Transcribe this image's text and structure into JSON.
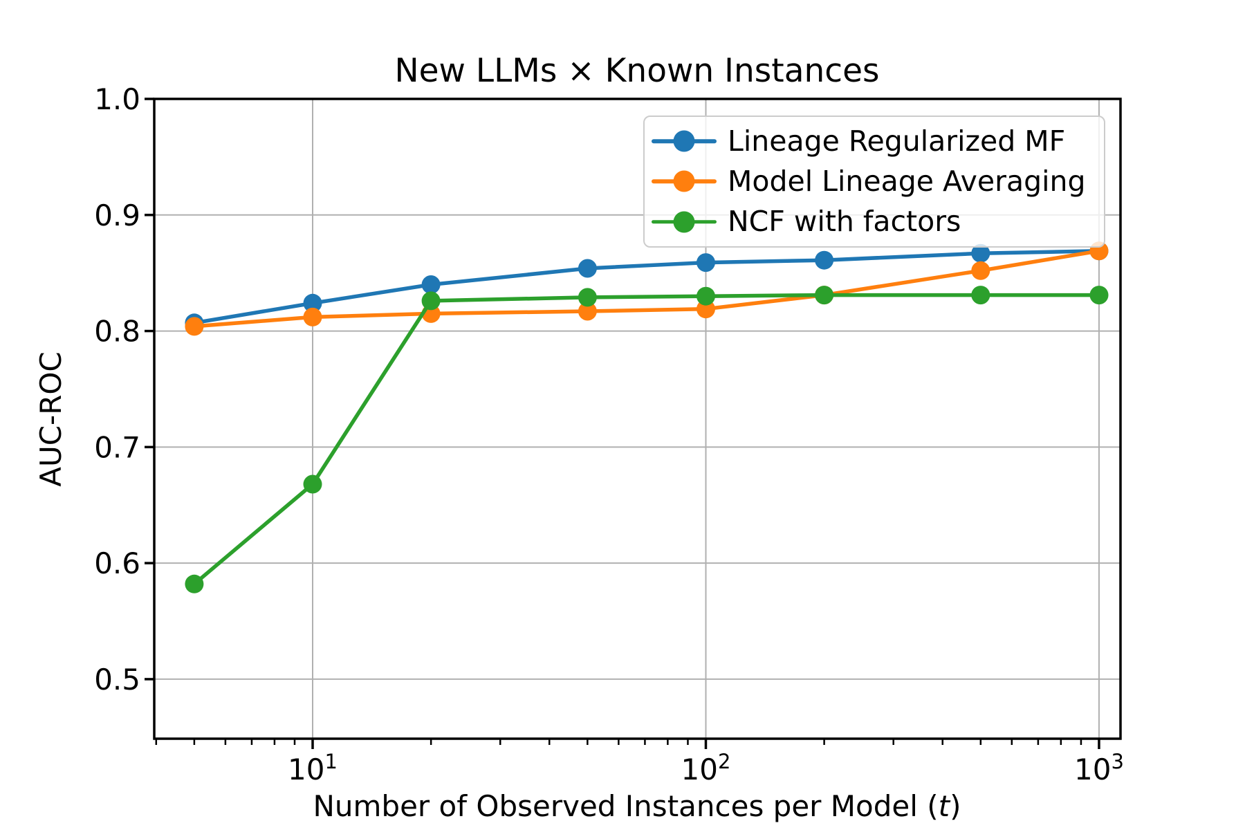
{
  "figure": {
    "background": "#ffffff"
  },
  "chart_data": {
    "type": "line",
    "title": "New LLMs × Known Instances",
    "xlabel_prefix": "Number of Observed Instances per Model (",
    "xlabel_var": "t",
    "xlabel_suffix": ")",
    "ylabel": "AUC-ROC",
    "xscale": "log",
    "grid": true,
    "grid_color": "#b0b0b0",
    "axis_color": "#000000",
    "x": [
      5,
      10,
      20,
      50,
      100,
      200,
      500,
      1000
    ],
    "series": [
      {
        "name": "Lineage Regularized MF",
        "color": "#1f77b4",
        "values": [
          0.807,
          0.824,
          0.84,
          0.854,
          0.859,
          0.861,
          0.867,
          0.869
        ]
      },
      {
        "name": "Model Lineage Averaging",
        "color": "#ff7f0e",
        "values": [
          0.804,
          0.812,
          0.815,
          0.817,
          0.819,
          0.831,
          0.852,
          0.869
        ]
      },
      {
        "name": "NCF with factors",
        "color": "#2ca02c",
        "values": [
          0.582,
          0.668,
          0.826,
          0.829,
          0.83,
          0.831,
          0.831,
          0.831
        ]
      }
    ],
    "yticks": [
      {
        "value": 0.5,
        "label": "0.5"
      },
      {
        "value": 0.6,
        "label": "0.6"
      },
      {
        "value": 0.7,
        "label": "0.7"
      },
      {
        "value": 0.8,
        "label": "0.8"
      },
      {
        "value": 0.9,
        "label": "0.9"
      },
      {
        "value": 1.0,
        "label": "1.0"
      }
    ],
    "xticks": [
      {
        "value": 10,
        "base": "10",
        "exp": "1"
      },
      {
        "value": 100,
        "base": "10",
        "exp": "2"
      },
      {
        "value": 1000,
        "base": "10",
        "exp": "3"
      }
    ],
    "ylim": [
      0.4487,
      1.0
    ],
    "xlim": [
      3.955,
      1134
    ],
    "legend_position": "upper right"
  }
}
